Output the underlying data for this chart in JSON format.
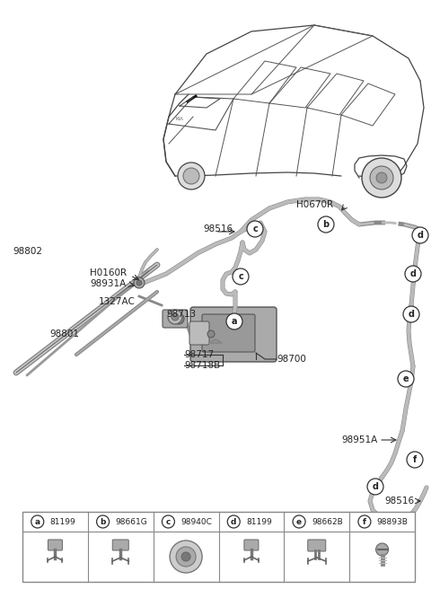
{
  "bg_color": "#ffffff",
  "figsize": [
    4.8,
    6.56
  ],
  "dpi": 100,
  "parts_table": {
    "items": [
      {
        "label": "a",
        "part": "81199"
      },
      {
        "label": "b",
        "part": "98661G"
      },
      {
        "label": "c",
        "part": "98940C"
      },
      {
        "label": "d",
        "part": "81199"
      },
      {
        "label": "e",
        "part": "98662B"
      },
      {
        "label": "f",
        "part": "98893B"
      }
    ]
  },
  "line_color": "#555555",
  "text_color": "#222222",
  "tube_color": "#aaaaaa",
  "dark_color": "#333333"
}
